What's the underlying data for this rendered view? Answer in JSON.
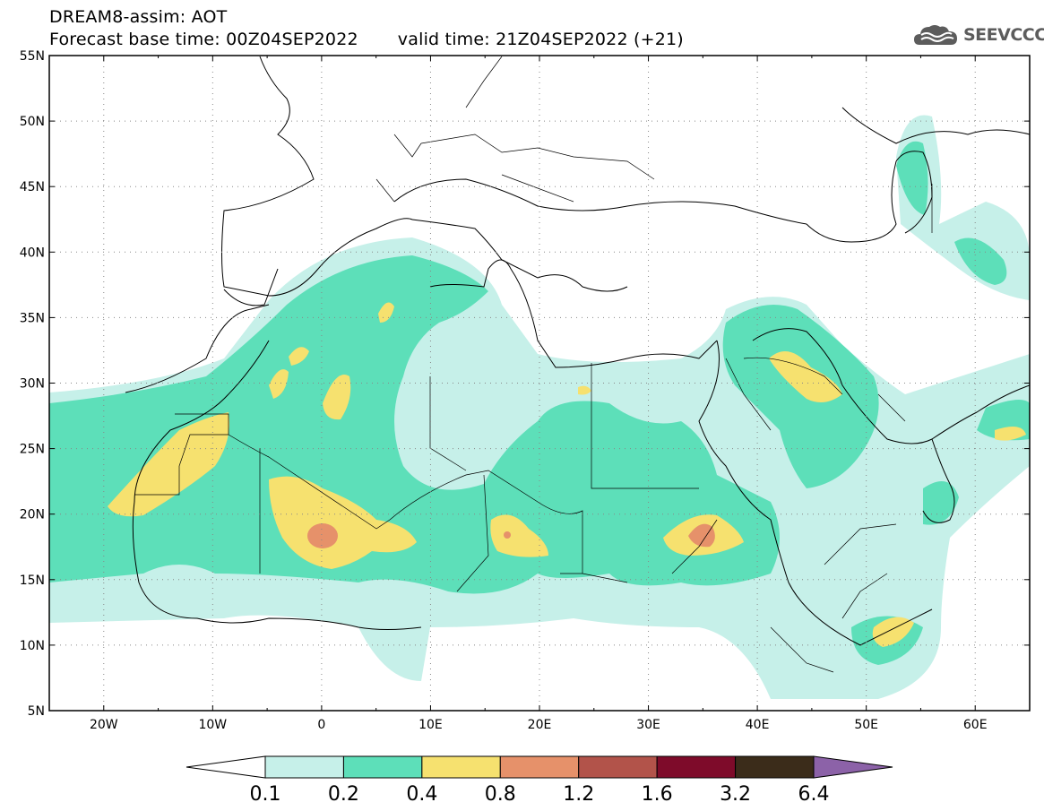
{
  "header": {
    "line1": "DREAM8-assim: AOT",
    "base_time": "Forecast base time: 00Z04SEP2022",
    "valid_time": "valid time: 21Z04SEP2022 (+21)"
  },
  "logo": {
    "text": "SEEVCCC",
    "icon": "cloud-logo-icon"
  },
  "map": {
    "lon_range": [
      -25,
      65
    ],
    "lat_range": [
      5,
      55
    ],
    "lon_ticks": [
      {
        "value": -20,
        "label": "20W"
      },
      {
        "value": -10,
        "label": "10W"
      },
      {
        "value": 0,
        "label": "0"
      },
      {
        "value": 10,
        "label": "10E"
      },
      {
        "value": 20,
        "label": "20E"
      },
      {
        "value": 30,
        "label": "30E"
      },
      {
        "value": 40,
        "label": "40E"
      },
      {
        "value": 50,
        "label": "50E"
      },
      {
        "value": 60,
        "label": "60E"
      }
    ],
    "lat_ticks": [
      {
        "value": 55,
        "label": "55N"
      },
      {
        "value": 50,
        "label": "50N"
      },
      {
        "value": 45,
        "label": "45N"
      },
      {
        "value": 40,
        "label": "40N"
      },
      {
        "value": 35,
        "label": "35N"
      },
      {
        "value": 30,
        "label": "30N"
      },
      {
        "value": 25,
        "label": "25N"
      },
      {
        "value": 20,
        "label": "20N"
      },
      {
        "value": 15,
        "label": "15N"
      },
      {
        "value": 10,
        "label": "10N"
      },
      {
        "value": 5,
        "label": "5N"
      }
    ],
    "gridlines": true
  },
  "colorbar": {
    "colors": [
      "#ffffff",
      "#c6f0e9",
      "#5ddfb9",
      "#f6e16f",
      "#e6916a",
      "#b2534a",
      "#7e0b2a",
      "#3b2c1a",
      "#8c62a8"
    ],
    "labels": [
      "0.1",
      "0.2",
      "0.4",
      "0.8",
      "1.2",
      "1.6",
      "3.2",
      "6.4"
    ]
  }
}
